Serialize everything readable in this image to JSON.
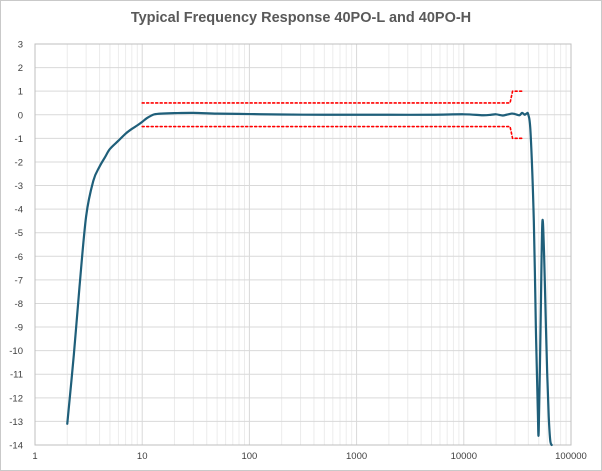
{
  "chart_data": {
    "type": "line",
    "title": "Typical Frequency Response 40PO-L and 40PO-H",
    "xlabel": "",
    "ylabel": "",
    "x_scale": "log",
    "xlim": [
      1,
      100000
    ],
    "ylim": [
      -14,
      3
    ],
    "grid": true,
    "x_tick_labels": [
      "1",
      "10",
      "100",
      "1000",
      "10000",
      "100000"
    ],
    "y_tick_labels": [
      "3",
      "2",
      "1",
      "0",
      "-1",
      "-2",
      "-3",
      "-4",
      "-5",
      "-6",
      "-7",
      "-8",
      "-9",
      "-10",
      "-11",
      "-12",
      "-13",
      "-14"
    ],
    "colors": {
      "series": "#1f5f7a",
      "limits": "#ff0000",
      "grid": "#d9d9d9"
    },
    "series": [
      {
        "x": [
          2,
          2.3,
          2.6,
          3,
          3.5,
          4,
          4.5,
          5,
          6,
          7,
          8,
          9,
          10,
          11,
          12,
          13,
          15,
          20,
          30,
          50,
          100,
          200,
          500,
          1000,
          2000,
          5000,
          10000,
          15000,
          18000,
          20000,
          23000,
          25000,
          28000,
          30000,
          33000,
          35000,
          37000,
          38500,
          40000,
          42000,
          45000,
          47000,
          49000,
          50000,
          52000,
          54000,
          56000,
          58000,
          60000,
          62000,
          64000,
          66000
        ],
        "y": [
          -13.1,
          -10.2,
          -7.3,
          -4.3,
          -2.8,
          -2.2,
          -1.8,
          -1.45,
          -1.1,
          -0.8,
          -0.6,
          -0.45,
          -0.3,
          -0.15,
          -0.05,
          0.02,
          0.05,
          0.07,
          0.08,
          0.05,
          0.03,
          0.01,
          0.0,
          0.0,
          0.0,
          0.0,
          0.02,
          -0.02,
          0.0,
          0.02,
          -0.03,
          0.0,
          0.05,
          0.03,
          -0.02,
          0.08,
          0.0,
          0.05,
          0.0,
          -0.8,
          -4.5,
          -9.0,
          -12.5,
          -13.4,
          -9.0,
          -4.6,
          -5.8,
          -8.5,
          -11.0,
          -12.8,
          -13.8,
          -14.0
        ]
      },
      {
        "x": [
          10,
          27000,
          28500,
          35000
        ],
        "y": [
          0.5,
          0.5,
          1.0,
          1.0
        ]
      },
      {
        "x": [
          10,
          27000,
          28500,
          35000
        ],
        "y": [
          -0.5,
          -0.5,
          -1.0,
          -1.0
        ]
      }
    ]
  }
}
